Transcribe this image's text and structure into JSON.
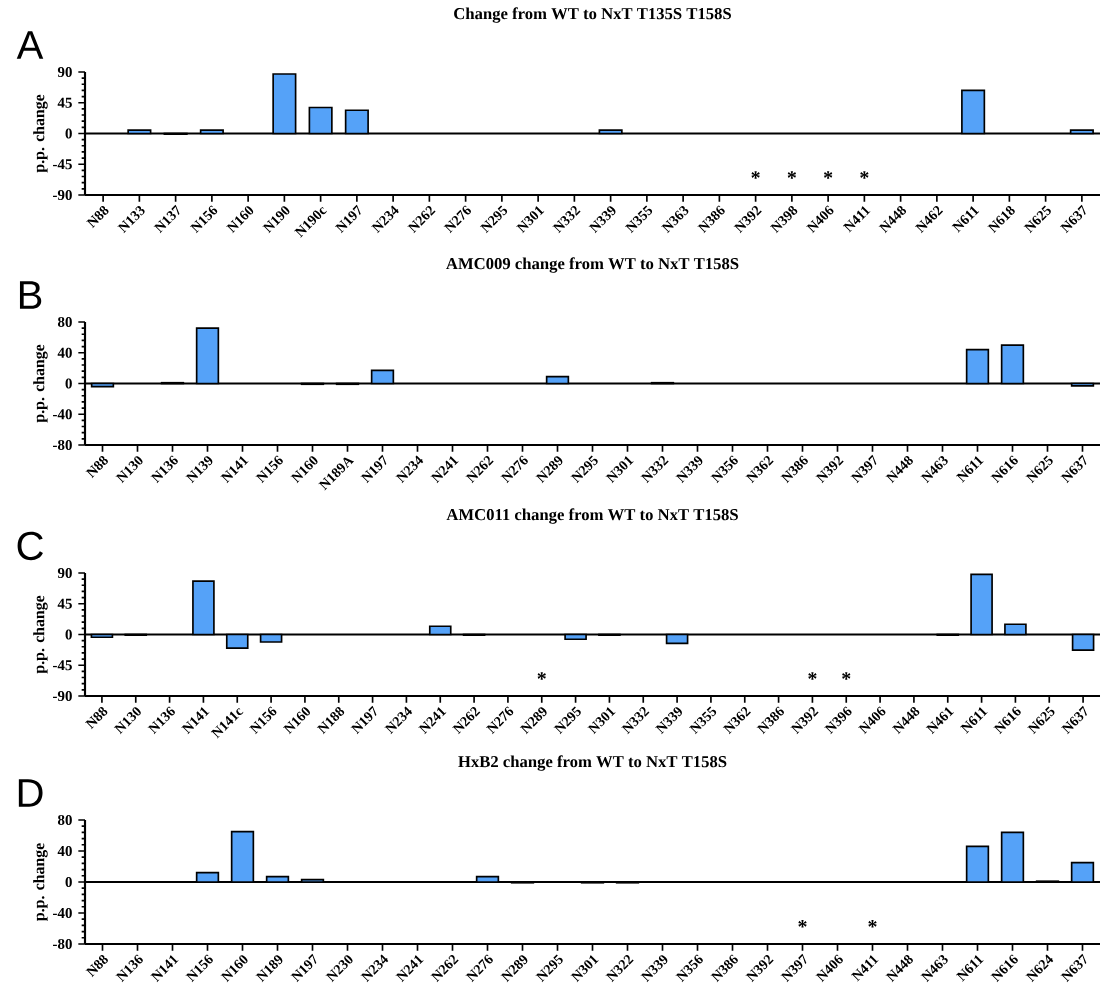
{
  "chart_data": [
    {
      "type": "bar",
      "title": "Change from WT to NxT T135S T158S",
      "ylabel": "p.p. change",
      "color": "#55a2f8",
      "categories": [
        "N88",
        "N133",
        "N137",
        "N156",
        "N160",
        "N190",
        "N190c",
        "N197",
        "N234",
        "N262",
        "N276",
        "N295",
        "N301",
        "N332",
        "N339",
        "N355",
        "N363",
        "N386",
        "N392",
        "N398",
        "N406",
        "N411",
        "N448",
        "N462",
        "N611",
        "N618",
        "N625",
        "N637"
      ],
      "values": [
        0,
        5,
        -1,
        5,
        0,
        87,
        38,
        34,
        0,
        0,
        0,
        0,
        0,
        0,
        5,
        0,
        0,
        0,
        0,
        0,
        0,
        0,
        0,
        0,
        63,
        0,
        0,
        5
      ],
      "value_labels": [
        null,
        null,
        null,
        null,
        null,
        null,
        null,
        null,
        null,
        null,
        null,
        null,
        null,
        null,
        null,
        null,
        null,
        null,
        "*",
        "*",
        "*",
        "*",
        null,
        null,
        null,
        null,
        null,
        null
      ],
      "ylim": [
        -90,
        90
      ],
      "yticks": [
        -90,
        -45,
        0,
        45,
        90
      ],
      "annotations": [
        "A"
      ]
    },
    {
      "type": "bar",
      "title": "AMC009 change from WT to NxT T158S",
      "ylabel": "p.p. change",
      "color": "#55a2f8",
      "categories": [
        "N88",
        "N130",
        "N136",
        "N139",
        "N141",
        "N156",
        "N160",
        "N189A",
        "N197",
        "N234",
        "N241",
        "N262",
        "N276",
        "N289",
        "N295",
        "N301",
        "N332",
        "N339",
        "N356",
        "N362",
        "N386",
        "N392",
        "N397",
        "N448",
        "N463",
        "N611",
        "N616",
        "N625",
        "N637"
      ],
      "values": [
        -4,
        0,
        1,
        72,
        0,
        0,
        -1,
        -1,
        17,
        0,
        0,
        0,
        0,
        9,
        0,
        0,
        1,
        0,
        0,
        0,
        0,
        0,
        0,
        0,
        0,
        44,
        50,
        0,
        -3
      ],
      "ylim": [
        -80,
        80
      ],
      "yticks": [
        -80,
        -40,
        0,
        40,
        80
      ],
      "annotations": [
        "B"
      ]
    },
    {
      "type": "bar",
      "title": "AMC011 change from WT to NxT T158S",
      "ylabel": "p.p. change",
      "color": "#55a2f8",
      "categories": [
        "N88",
        "N130",
        "N136",
        "N141",
        "N141c",
        "N156",
        "N160",
        "N188",
        "N197",
        "N234",
        "N241",
        "N262",
        "N276",
        "N289",
        "N295",
        "N301",
        "N332",
        "N339",
        "N355",
        "N362",
        "N386",
        "N392",
        "N396",
        "N406",
        "N448",
        "N461",
        "N611",
        "N616",
        "N625",
        "N637"
      ],
      "values": [
        -4,
        -1,
        0,
        78,
        -20,
        -11,
        0,
        0,
        0,
        0,
        12,
        -1,
        0,
        0,
        -7,
        -1,
        0,
        -13,
        0,
        0,
        0,
        0,
        0,
        0,
        0,
        -1,
        88,
        15,
        0,
        -23
      ],
      "value_labels": [
        null,
        null,
        null,
        null,
        null,
        null,
        null,
        null,
        null,
        null,
        null,
        null,
        null,
        "*",
        null,
        null,
        null,
        null,
        null,
        null,
        null,
        "*",
        "*",
        null,
        null,
        null,
        null,
        null,
        null,
        null
      ],
      "ylim": [
        -90,
        90
      ],
      "yticks": [
        -90,
        -45,
        0,
        45,
        90
      ],
      "annotations": [
        "C"
      ]
    },
    {
      "type": "bar",
      "title": "HxB2 change from WT to NxT T158S",
      "ylabel": "p.p. change",
      "color": "#55a2f8",
      "categories": [
        "N88",
        "N136",
        "N141",
        "N156",
        "N160",
        "N189",
        "N197",
        "N230",
        "N234",
        "N241",
        "N262",
        "N276",
        "N289",
        "N295",
        "N301",
        "N322",
        "N339",
        "N356",
        "N386",
        "N392",
        "N397",
        "N406",
        "N411",
        "N448",
        "N463",
        "N611",
        "N616",
        "N624",
        "N637"
      ],
      "values": [
        0,
        0,
        0,
        12,
        65,
        7,
        3,
        0,
        0,
        0,
        0,
        7,
        -1,
        0,
        -1,
        -1,
        0,
        0,
        0,
        0,
        0,
        0,
        0,
        0,
        0,
        46,
        64,
        1,
        25
      ],
      "value_labels": [
        null,
        null,
        null,
        null,
        null,
        null,
        null,
        null,
        null,
        null,
        null,
        null,
        null,
        null,
        null,
        null,
        null,
        null,
        null,
        null,
        "*",
        null,
        "*",
        null,
        null,
        null,
        null,
        null,
        null
      ],
      "ylim": [
        -80,
        80
      ],
      "yticks": [
        -80,
        -40,
        0,
        40,
        80
      ],
      "annotations": [
        "D"
      ]
    }
  ]
}
